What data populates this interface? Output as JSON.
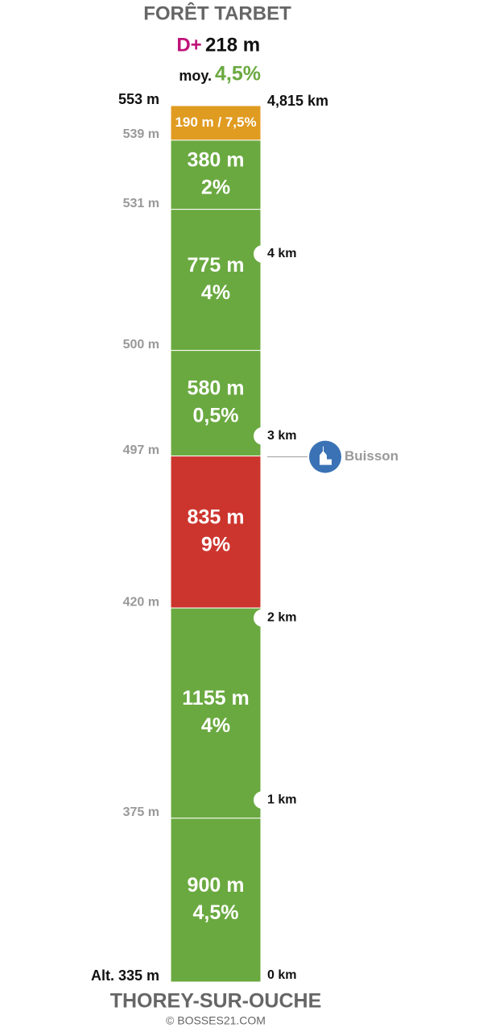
{
  "header": {
    "title": "FORÊT TARBET",
    "gain_label": "D+",
    "gain": "218 m",
    "avg_label": "moy.",
    "avg": "4,5%"
  },
  "segments": [
    {
      "label": "190 m / 7,5%",
      "color": "#e09b21"
    },
    {
      "length": "380 m",
      "grade": "2%",
      "color": "#6aa940"
    },
    {
      "length": "775 m",
      "grade": "4%",
      "color": "#6aa940"
    },
    {
      "length": "580 m",
      "grade": "0,5%",
      "color": "#6aa940"
    },
    {
      "length": "835 m",
      "grade": "9%",
      "color": "#cc352e"
    },
    {
      "length": "1155 m",
      "grade": "4%",
      "color": "#6aa940"
    },
    {
      "length": "900 m",
      "grade": "4,5%",
      "color": "#6aa940"
    }
  ],
  "altitudes": [
    "553 m",
    "539 m",
    "531 m",
    "500 m",
    "497 m",
    "420 m",
    "375 m",
    "Alt. 335 m"
  ],
  "km_markers": [
    "4,815 km",
    "4 km",
    "3 km",
    "2 km",
    "1 km",
    "0 km"
  ],
  "poi": {
    "label": "Buisson"
  },
  "footer": {
    "start": "THOREY-SUR-OUCHE",
    "credit": "© BOSSES21.COM"
  }
}
